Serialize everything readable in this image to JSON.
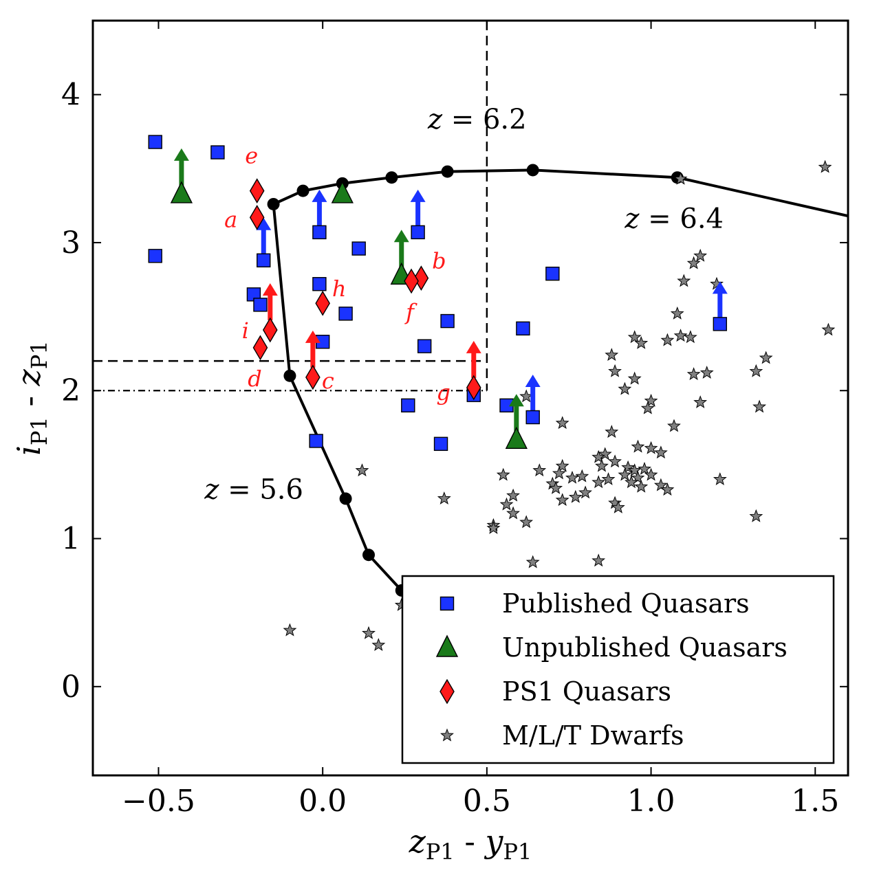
{
  "chart_data": {
    "type": "scatter",
    "xlabel": "z_P1 - y_P1",
    "ylabel": "i_P1 - z_P1",
    "xlim": [
      -0.7,
      1.6
    ],
    "ylim": [
      -0.6,
      4.5
    ],
    "xticks": [
      -0.5,
      0.0,
      0.5,
      1.0,
      1.5
    ],
    "yticks": [
      0,
      1,
      2,
      3,
      4
    ],
    "xtick_labels": [
      "−0.5",
      "0.0",
      "0.5",
      "1.0",
      "1.5"
    ],
    "ytick_labels": [
      "0",
      "1",
      "2",
      "3",
      "4"
    ],
    "grid": false,
    "legend_position": "lower right",
    "legend": [
      {
        "label": "Published Quasars",
        "marker": "square",
        "color": "#1a33ff"
      },
      {
        "label": "Unpublished Quasars",
        "marker": "triangle",
        "color": "#1a7a1a"
      },
      {
        "label": "PS1 Quasars",
        "marker": "diamond",
        "color": "#ff1a1a"
      },
      {
        "label": "M/L/T Dwarfs",
        "marker": "star",
        "color": "#808080"
      }
    ],
    "track": {
      "label_pieces": [
        [
          "z",
          " = 5.6"
        ],
        [
          "z",
          " = 6.2"
        ],
        [
          "z",
          " = 6.4"
        ]
      ],
      "points": [
        {
          "x": 0.24,
          "y": 0.65
        },
        {
          "x": 0.14,
          "y": 0.89
        },
        {
          "x": 0.07,
          "y": 1.27
        },
        {
          "x": -0.1,
          "y": 2.1
        },
        {
          "x": -0.15,
          "y": 3.26
        },
        {
          "x": -0.06,
          "y": 3.35
        },
        {
          "x": 0.06,
          "y": 3.4
        },
        {
          "x": 0.21,
          "y": 3.44
        },
        {
          "x": 0.38,
          "y": 3.48
        },
        {
          "x": 0.64,
          "y": 3.49
        },
        {
          "x": 1.08,
          "y": 3.44
        }
      ],
      "end_point": {
        "x": 1.6,
        "y": 3.18
      }
    },
    "cuts": {
      "dashed_vertical_x": 0.5,
      "dashed_horizontal_y": 2.2,
      "dashdot_horizontal_y": 2.0
    },
    "series": [
      {
        "name": "Published Quasars",
        "marker": "square",
        "color": "#1a33ff",
        "points": [
          {
            "x": -0.51,
            "y": 3.68
          },
          {
            "x": -0.32,
            "y": 3.61
          },
          {
            "x": -0.51,
            "y": 2.91
          },
          {
            "x": -0.18,
            "y": 2.88,
            "lower_limit": true
          },
          {
            "x": -0.21,
            "y": 2.65
          },
          {
            "x": -0.19,
            "y": 2.58
          },
          {
            "x": -0.01,
            "y": 3.07,
            "lower_limit": true
          },
          {
            "x": 0.11,
            "y": 2.96
          },
          {
            "x": -0.01,
            "y": 2.72
          },
          {
            "x": 0.07,
            "y": 2.52
          },
          {
            "x": 0.0,
            "y": 2.33
          },
          {
            "x": 0.29,
            "y": 3.07,
            "lower_limit": true
          },
          {
            "x": 0.38,
            "y": 2.47
          },
          {
            "x": 0.31,
            "y": 2.3
          },
          {
            "x": 0.26,
            "y": 1.9
          },
          {
            "x": 0.36,
            "y": 1.64
          },
          {
            "x": -0.02,
            "y": 1.66
          },
          {
            "x": 0.46,
            "y": 1.97
          },
          {
            "x": 0.56,
            "y": 1.9
          },
          {
            "x": 0.64,
            "y": 1.82,
            "lower_limit": true
          },
          {
            "x": 0.61,
            "y": 2.42
          },
          {
            "x": 0.7,
            "y": 2.79
          },
          {
            "x": 1.21,
            "y": 2.45,
            "lower_limit": true
          }
        ]
      },
      {
        "name": "Unpublished Quasars",
        "marker": "triangle",
        "color": "#1a7a1a",
        "points": [
          {
            "x": -0.43,
            "y": 3.33,
            "lower_limit": true
          },
          {
            "x": 0.06,
            "y": 3.33
          },
          {
            "x": 0.24,
            "y": 2.78,
            "lower_limit": true
          },
          {
            "x": 0.59,
            "y": 1.67,
            "lower_limit": true
          }
        ]
      },
      {
        "name": "PS1 Quasars",
        "marker": "diamond",
        "color": "#ff1a1a",
        "points": [
          {
            "x": -0.2,
            "y": 3.17,
            "label": "a"
          },
          {
            "x": 0.3,
            "y": 2.76,
            "label": "b"
          },
          {
            "x": -0.03,
            "y": 2.09,
            "label": "c",
            "lower_limit": true
          },
          {
            "x": -0.19,
            "y": 2.29,
            "label": "d"
          },
          {
            "x": -0.2,
            "y": 3.35,
            "label": "e"
          },
          {
            "x": 0.27,
            "y": 2.74,
            "label": "f"
          },
          {
            "x": 0.46,
            "y": 2.02,
            "label": "g",
            "lower_limit": true
          },
          {
            "x": 0.0,
            "y": 2.59,
            "label": "h"
          },
          {
            "x": -0.16,
            "y": 2.41,
            "label": "i",
            "lower_limit": true
          }
        ]
      },
      {
        "name": "M/L/T Dwarfs",
        "marker": "star",
        "color": "#808080",
        "points": [
          {
            "x": 1.53,
            "y": 3.51
          },
          {
            "x": 1.54,
            "y": 2.41
          },
          {
            "x": 1.21,
            "y": 1.4
          },
          {
            "x": 1.32,
            "y": 1.15
          },
          {
            "x": 1.09,
            "y": 3.43
          },
          {
            "x": 1.15,
            "y": 2.91
          },
          {
            "x": 1.13,
            "y": 2.86
          },
          {
            "x": 1.2,
            "y": 2.72
          },
          {
            "x": 1.1,
            "y": 2.74
          },
          {
            "x": 1.08,
            "y": 2.52
          },
          {
            "x": 1.09,
            "y": 2.37
          },
          {
            "x": 1.12,
            "y": 2.36
          },
          {
            "x": 1.05,
            "y": 2.34
          },
          {
            "x": 0.95,
            "y": 2.36
          },
          {
            "x": 0.97,
            "y": 2.32
          },
          {
            "x": 0.88,
            "y": 2.24
          },
          {
            "x": 0.89,
            "y": 2.13
          },
          {
            "x": 0.95,
            "y": 2.08
          },
          {
            "x": 0.92,
            "y": 2.01
          },
          {
            "x": 1.13,
            "y": 2.11
          },
          {
            "x": 1.17,
            "y": 2.12
          },
          {
            "x": 1.35,
            "y": 2.22
          },
          {
            "x": 1.32,
            "y": 2.13
          },
          {
            "x": 1.33,
            "y": 1.89
          },
          {
            "x": 1.15,
            "y": 1.92
          },
          {
            "x": 1.0,
            "y": 1.93
          },
          {
            "x": 0.99,
            "y": 1.88
          },
          {
            "x": 1.07,
            "y": 1.76
          },
          {
            "x": 0.62,
            "y": 1.96
          },
          {
            "x": 0.73,
            "y": 1.78
          },
          {
            "x": 0.88,
            "y": 1.72
          },
          {
            "x": 1.0,
            "y": 1.61
          },
          {
            "x": 1.03,
            "y": 1.58
          },
          {
            "x": 0.96,
            "y": 1.62
          },
          {
            "x": 0.86,
            "y": 1.57
          },
          {
            "x": 0.84,
            "y": 1.55
          },
          {
            "x": 0.89,
            "y": 1.52
          },
          {
            "x": 0.85,
            "y": 1.49
          },
          {
            "x": 0.93,
            "y": 1.48
          },
          {
            "x": 0.95,
            "y": 1.46
          },
          {
            "x": 0.98,
            "y": 1.47
          },
          {
            "x": 0.92,
            "y": 1.43
          },
          {
            "x": 0.96,
            "y": 1.41
          },
          {
            "x": 1.0,
            "y": 1.43
          },
          {
            "x": 0.87,
            "y": 1.4
          },
          {
            "x": 0.84,
            "y": 1.38
          },
          {
            "x": 0.94,
            "y": 1.38
          },
          {
            "x": 0.97,
            "y": 1.35
          },
          {
            "x": 0.73,
            "y": 1.49
          },
          {
            "x": 0.72,
            "y": 1.44
          },
          {
            "x": 0.76,
            "y": 1.41
          },
          {
            "x": 0.79,
            "y": 1.42
          },
          {
            "x": 0.66,
            "y": 1.46
          },
          {
            "x": 0.7,
            "y": 1.37
          },
          {
            "x": 0.71,
            "y": 1.34
          },
          {
            "x": 0.8,
            "y": 1.31
          },
          {
            "x": 0.77,
            "y": 1.28
          },
          {
            "x": 0.73,
            "y": 1.26
          },
          {
            "x": 0.89,
            "y": 1.24
          },
          {
            "x": 0.9,
            "y": 1.21
          },
          {
            "x": 1.03,
            "y": 1.36
          },
          {
            "x": 1.05,
            "y": 1.33
          },
          {
            "x": 0.55,
            "y": 1.43
          },
          {
            "x": 0.58,
            "y": 1.29
          },
          {
            "x": 0.56,
            "y": 1.23
          },
          {
            "x": 0.58,
            "y": 1.17
          },
          {
            "x": 0.62,
            "y": 1.11
          },
          {
            "x": 0.52,
            "y": 1.09
          },
          {
            "x": 0.52,
            "y": 1.07
          },
          {
            "x": 0.37,
            "y": 1.27
          },
          {
            "x": 0.12,
            "y": 1.46
          },
          {
            "x": 0.64,
            "y": 0.84
          },
          {
            "x": 0.84,
            "y": 0.85
          },
          {
            "x": -0.1,
            "y": 0.38
          },
          {
            "x": 0.14,
            "y": 0.36
          },
          {
            "x": 0.17,
            "y": 0.28
          },
          {
            "x": 0.24,
            "y": 0.55
          }
        ]
      }
    ],
    "annotations": [
      {
        "text": [
          "z",
          " = 5.6"
        ],
        "x": -0.36,
        "y": 1.27
      },
      {
        "text": [
          "z",
          " = 6.2"
        ],
        "x": 0.32,
        "y": 3.77
      },
      {
        "text": [
          "z",
          " = 6.4"
        ],
        "x": 0.92,
        "y": 3.1
      }
    ]
  }
}
